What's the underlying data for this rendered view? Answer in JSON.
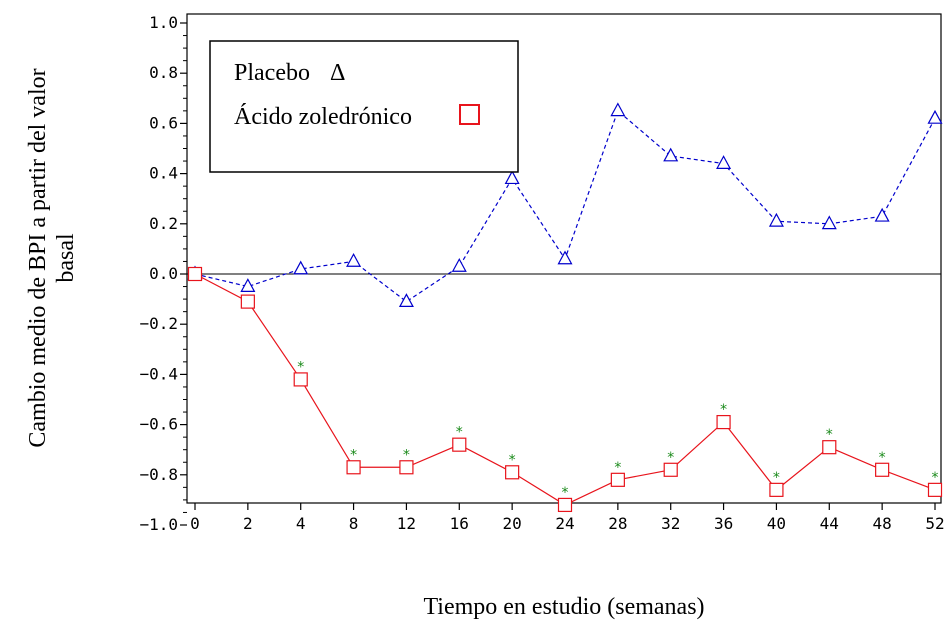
{
  "chart_data": {
    "type": "line",
    "title": "",
    "xlabel": "Tiempo en estudio (semanas)",
    "ylabel_line1": "Cambio medio de BPI a partir del valor",
    "ylabel_line2": "basal",
    "categories": [
      "0",
      "2",
      "4",
      "8",
      "12",
      "16",
      "20",
      "24",
      "28",
      "32",
      "36",
      "40",
      "44",
      "48",
      "52"
    ],
    "ylim": [
      -1.0,
      1.0
    ],
    "yticks": [
      "−1.0",
      "−0.8",
      "−0.6",
      "−0.4",
      "−0.2",
      "0.0",
      "0.2",
      "0.4",
      "0.6",
      "0.8",
      "1.0"
    ],
    "ytick_values": [
      -1.0,
      -0.8,
      -0.6,
      -0.4,
      -0.2,
      0.0,
      0.2,
      0.4,
      0.6,
      0.8,
      1.0
    ],
    "reference_line_y": 0.0,
    "grid": false,
    "legend_position": "top-left",
    "series": [
      {
        "name": "Placebo",
        "legend_symbol": "Δ",
        "color": "#0000cc",
        "line_style": "dashed",
        "marker": "triangle",
        "values": [
          0.0,
          -0.05,
          0.02,
          0.05,
          -0.11,
          0.03,
          0.38,
          0.06,
          0.65,
          0.47,
          0.44,
          0.21,
          0.2,
          0.23,
          0.62
        ]
      },
      {
        "name": "Ácido zoledrónico",
        "legend_symbol": "□",
        "color": "#e8141c",
        "line_style": "solid",
        "marker": "square",
        "values": [
          0.0,
          -0.11,
          -0.42,
          -0.77,
          -0.77,
          -0.68,
          -0.79,
          -0.92,
          -0.82,
          -0.78,
          -0.59,
          -0.86,
          -0.69,
          -0.78,
          -0.86
        ],
        "significance_marker": "*",
        "significance_color": "#1a8a1a",
        "significant": [
          false,
          false,
          true,
          true,
          true,
          true,
          true,
          true,
          true,
          true,
          true,
          true,
          true,
          true,
          true
        ]
      }
    ]
  }
}
